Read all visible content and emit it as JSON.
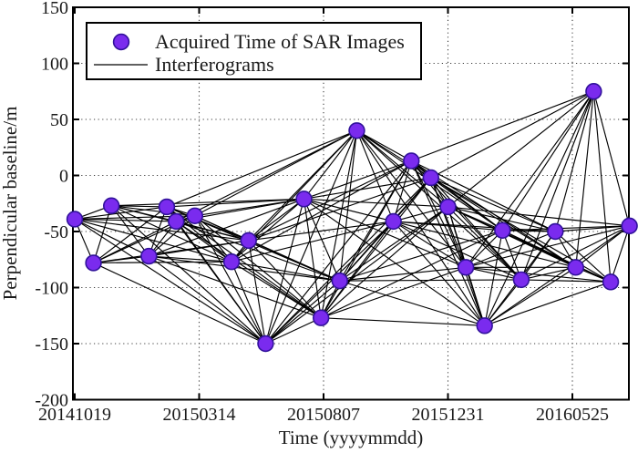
{
  "legend": {
    "marker_label": "Acquired Time of SAR Images",
    "line_label": "Interferograms"
  },
  "colors": {
    "marker_fill": "#7A2BEE",
    "marker_edge": "#31129B",
    "interferogram_line": "#000000",
    "grid": "#3c3c3c",
    "axis": "#000000"
  },
  "chart_data": {
    "type": "scatter",
    "title": "",
    "xlabel": "Time (yyyymmdd)",
    "ylabel": "Perpendicular baseline/m",
    "x_tick_labels": [
      "20141019",
      "20150314",
      "20150807",
      "20151231",
      "20160525"
    ],
    "y_ticks": [
      150,
      100,
      50,
      0,
      -50,
      -100,
      -150,
      -200
    ],
    "ylim": [
      -200,
      150
    ],
    "grid": "dotted",
    "legend_position": "top-left",
    "points": [
      {
        "date": "20141019",
        "baseline": -39
      },
      {
        "date": "20141110",
        "baseline": -78
      },
      {
        "date": "20141201",
        "baseline": -27
      },
      {
        "date": "20150114",
        "baseline": -72
      },
      {
        "date": "20150204",
        "baseline": -28
      },
      {
        "date": "20150215",
        "baseline": -41
      },
      {
        "date": "20150309",
        "baseline": -36
      },
      {
        "date": "20150421",
        "baseline": -77
      },
      {
        "date": "20150511",
        "baseline": -58
      },
      {
        "date": "20150531",
        "baseline": -150
      },
      {
        "date": "20150715",
        "baseline": -21
      },
      {
        "date": "20150804",
        "baseline": -127
      },
      {
        "date": "20150826",
        "baseline": -94
      },
      {
        "date": "20150915",
        "baseline": 40
      },
      {
        "date": "20151028",
        "baseline": -41
      },
      {
        "date": "20151118",
        "baseline": 13
      },
      {
        "date": "20151211",
        "baseline": -2
      },
      {
        "date": "20151231",
        "baseline": -28
      },
      {
        "date": "20160121",
        "baseline": -82
      },
      {
        "date": "20160212",
        "baseline": -134
      },
      {
        "date": "20160304",
        "baseline": -49
      },
      {
        "date": "20160326",
        "baseline": -93
      },
      {
        "date": "20160505",
        "baseline": -50
      },
      {
        "date": "20160529",
        "baseline": -82
      },
      {
        "date": "20160619",
        "baseline": 75
      },
      {
        "date": "20160709",
        "baseline": -95
      },
      {
        "date": "20160731",
        "baseline": -45
      }
    ],
    "interferogram_pairs": [
      {
        "from": 1,
        "to": [
          2,
          10
        ]
      },
      {
        "from": 2,
        "to": [
          3,
          10
        ]
      },
      {
        "from": 3,
        "to": [
          4,
          11
        ]
      },
      {
        "from": 4,
        "to": [
          5,
          13
        ]
      },
      {
        "from": 5,
        "to": [
          6,
          14
        ]
      },
      {
        "from": 6,
        "to": [
          7,
          14
        ]
      },
      {
        "from": 7,
        "to": [
          8,
          14
        ]
      },
      {
        "from": 8,
        "to": [
          9,
          16
        ]
      },
      {
        "from": 9,
        "to": [
          10,
          17
        ]
      },
      {
        "from": 10,
        "to": [
          11,
          18
        ]
      },
      {
        "from": 11,
        "to": [
          12,
          20
        ]
      },
      {
        "from": 12,
        "to": [
          13,
          21
        ]
      },
      {
        "from": 13,
        "to": [
          14,
          22
        ]
      },
      {
        "from": 14,
        "to": [
          15,
          22
        ]
      },
      {
        "from": 15,
        "to": [
          16,
          24
        ]
      },
      {
        "from": 16,
        "to": [
          17,
          25
        ]
      },
      {
        "from": 17,
        "to": [
          18,
          26
        ]
      },
      {
        "from": 18,
        "to": [
          19,
          27
        ]
      },
      {
        "from": 19,
        "to": [
          20,
          27
        ]
      },
      {
        "from": 20,
        "to": [
          21,
          27
        ]
      },
      {
        "from": 21,
        "to": [
          22,
          27
        ]
      },
      {
        "from": 22,
        "to": [
          23,
          27
        ]
      },
      {
        "from": 23,
        "to": [
          24,
          27
        ]
      },
      {
        "from": 24,
        "to": [
          25,
          27
        ]
      },
      {
        "from": 25,
        "to": [
          26,
          27
        ]
      },
      {
        "from": 26,
        "to": [
          27,
          27
        ]
      }
    ]
  }
}
